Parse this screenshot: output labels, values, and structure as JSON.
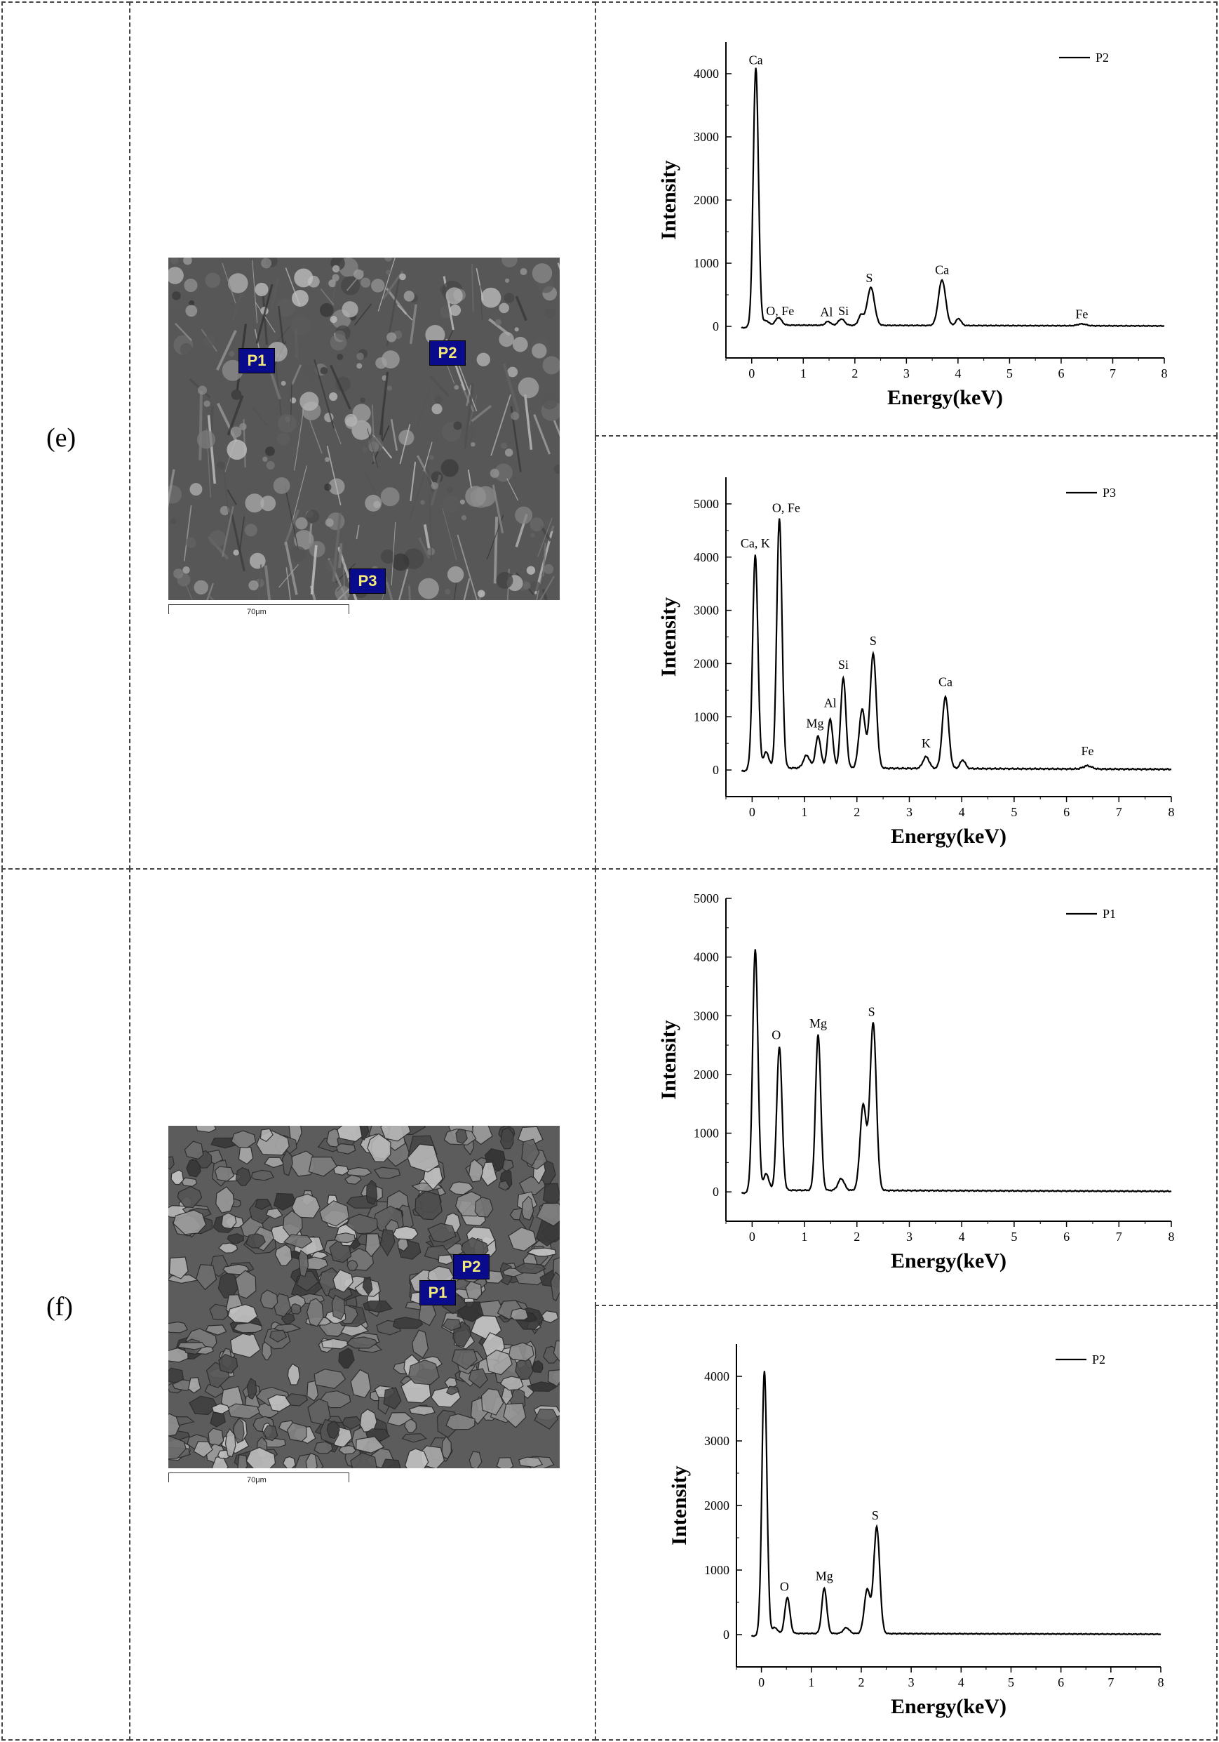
{
  "rows": [
    {
      "label": "(e)",
      "markers": [
        "P1",
        "P2",
        "P3"
      ],
      "scale": "70μm"
    },
    {
      "label": "(f)",
      "markers": [
        "P2",
        "P1"
      ],
      "scale": "70μm"
    }
  ],
  "chart_data": [
    {
      "type": "line",
      "legend": "P2",
      "xlabel": "Energy(keV)",
      "ylabel": "Intensity",
      "xlim": [
        -0.5,
        8
      ],
      "ylim": [
        -500,
        4500
      ],
      "xticks": [
        0,
        1,
        2,
        3,
        4,
        5,
        6,
        7,
        8
      ],
      "yticks": [
        0,
        1000,
        2000,
        3000,
        4000
      ],
      "baseline": 20,
      "peaks": [
        [
          0.08,
          4080,
          0.05
        ],
        [
          0.28,
          70,
          0.05
        ],
        [
          0.52,
          120,
          0.06
        ],
        [
          1.48,
          60,
          0.05
        ],
        [
          1.74,
          100,
          0.06
        ],
        [
          2.12,
          160,
          0.05
        ],
        [
          2.31,
          600,
          0.07
        ],
        [
          3.69,
          720,
          0.07
        ],
        [
          4.01,
          110,
          0.05
        ],
        [
          6.4,
          30,
          0.08
        ]
      ],
      "annotations": [
        {
          "text": "Ca",
          "x": 0.08,
          "y": 4150
        },
        {
          "text": "O, Fe",
          "x": 0.55,
          "y": 180
        },
        {
          "text": "Al",
          "x": 1.45,
          "y": 160
        },
        {
          "text": "Si",
          "x": 1.78,
          "y": 180
        },
        {
          "text": "S",
          "x": 2.28,
          "y": 700
        },
        {
          "text": "Ca",
          "x": 3.69,
          "y": 830
        },
        {
          "text": "Fe",
          "x": 6.4,
          "y": 130
        }
      ]
    },
    {
      "type": "line",
      "legend": "P3",
      "xlabel": "Energy(keV)",
      "ylabel": "Intensity",
      "xlim": [
        -0.5,
        8
      ],
      "ylim": [
        -500,
        5500
      ],
      "xticks": [
        0,
        1,
        2,
        3,
        4,
        5,
        6,
        7,
        8
      ],
      "yticks": [
        0,
        1000,
        2000,
        3000,
        4000,
        5000
      ],
      "baseline": 40,
      "peaks": [
        [
          0.06,
          4000,
          0.05
        ],
        [
          0.27,
          300,
          0.05
        ],
        [
          0.52,
          4700,
          0.05
        ],
        [
          1.04,
          240,
          0.06
        ],
        [
          1.26,
          600,
          0.05
        ],
        [
          1.49,
          920,
          0.05
        ],
        [
          1.74,
          1700,
          0.05
        ],
        [
          2.1,
          1100,
          0.06
        ],
        [
          2.31,
          2150,
          0.06
        ],
        [
          3.32,
          220,
          0.06
        ],
        [
          3.69,
          1350,
          0.06
        ],
        [
          4.02,
          160,
          0.05
        ],
        [
          6.4,
          60,
          0.08
        ]
      ],
      "annotations": [
        {
          "text": "Ca, K",
          "x": 0.06,
          "y": 4180
        },
        {
          "text": "O, Fe",
          "x": 0.65,
          "y": 4850
        },
        {
          "text": "Mg",
          "x": 1.2,
          "y": 800
        },
        {
          "text": "Al",
          "x": 1.49,
          "y": 1180
        },
        {
          "text": "Si",
          "x": 1.74,
          "y": 1900
        },
        {
          "text": "S",
          "x": 2.31,
          "y": 2350
        },
        {
          "text": "K",
          "x": 3.32,
          "y": 420
        },
        {
          "text": "Ca",
          "x": 3.69,
          "y": 1580
        },
        {
          "text": "Fe",
          "x": 6.4,
          "y": 280
        }
      ]
    },
    {
      "type": "line",
      "legend": "P1",
      "xlabel": "Energy(keV)",
      "ylabel": "Intensity",
      "xlim": [
        -0.5,
        8
      ],
      "ylim": [
        -500,
        5000
      ],
      "xticks": [
        0,
        1,
        2,
        3,
        4,
        5,
        6,
        7,
        8
      ],
      "yticks": [
        0,
        1000,
        2000,
        3000,
        4000,
        5000
      ],
      "baseline": 30,
      "peaks": [
        [
          0.06,
          4100,
          0.05
        ],
        [
          0.27,
          280,
          0.05
        ],
        [
          0.52,
          2450,
          0.05
        ],
        [
          1.26,
          2650,
          0.05
        ],
        [
          1.7,
          200,
          0.06
        ],
        [
          2.12,
          1450,
          0.06
        ],
        [
          2.31,
          2850,
          0.06
        ]
      ],
      "annotations": [
        {
          "text": "O",
          "x": 0.46,
          "y": 2600
        },
        {
          "text": "Mg",
          "x": 1.26,
          "y": 2800
        },
        {
          "text": "S",
          "x": 2.28,
          "y": 3000
        }
      ]
    },
    {
      "type": "line",
      "legend": "P2",
      "xlabel": "Energy(keV)",
      "ylabel": "Intensity",
      "xlim": [
        -0.5,
        8
      ],
      "ylim": [
        -500,
        4500
      ],
      "xticks": [
        0,
        1,
        2,
        3,
        4,
        5,
        6,
        7,
        8
      ],
      "yticks": [
        0,
        1000,
        2000,
        3000,
        4000
      ],
      "baseline": 20,
      "peaks": [
        [
          0.06,
          4060,
          0.05
        ],
        [
          0.27,
          90,
          0.05
        ],
        [
          0.52,
          560,
          0.05
        ],
        [
          1.26,
          700,
          0.05
        ],
        [
          1.7,
          90,
          0.06
        ],
        [
          2.12,
          680,
          0.06
        ],
        [
          2.31,
          1650,
          0.06
        ]
      ],
      "annotations": [
        {
          "text": "O",
          "x": 0.46,
          "y": 680
        },
        {
          "text": "Mg",
          "x": 1.26,
          "y": 840
        },
        {
          "text": "S",
          "x": 2.28,
          "y": 1780
        }
      ]
    }
  ]
}
